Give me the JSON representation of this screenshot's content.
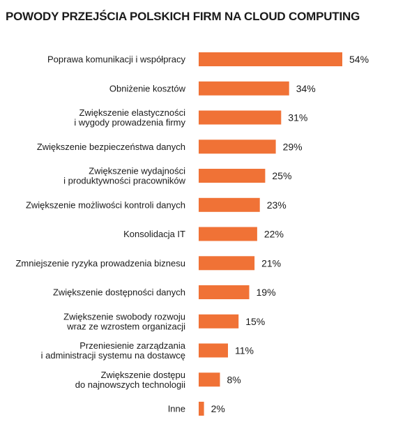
{
  "chart_data": {
    "type": "bar",
    "orientation": "horizontal",
    "title": "POWODY PRZEJŚCIA POLSKICH FIRM NA CLOUD COMPUTING",
    "bar_color": "#f07236",
    "value_suffix": "%",
    "categories": [
      [
        "Poprawa komunikacji i współpracy"
      ],
      [
        "Obniżenie kosztów"
      ],
      [
        "Zwiększenie elastyczności",
        "i wygody prowadzenia firmy"
      ],
      [
        "Zwiększenie bezpieczeństwa danych"
      ],
      [
        "Zwiększenie wydajności",
        "i produktywności pracowników"
      ],
      [
        "Zwiększenie możliwości kontroli danych"
      ],
      [
        "Konsolidacja IT"
      ],
      [
        "Zmniejszenie ryzyka prowadzenia biznesu"
      ],
      [
        "Zwiększenie dostępności danych"
      ],
      [
        "Zwiększenie swobody rozwoju",
        "wraz ze wzrostem organizacji"
      ],
      [
        "Przeniesienie zarządzania",
        "i administracji systemu na dostawcę"
      ],
      [
        "Zwiększenie dostępu",
        "do najnowszych technologii"
      ],
      [
        "Inne"
      ]
    ],
    "values": [
      54,
      34,
      31,
      29,
      25,
      23,
      22,
      21,
      19,
      15,
      11,
      8,
      2
    ],
    "xlim": [
      0,
      54
    ],
    "grid": false,
    "legend": "none"
  }
}
